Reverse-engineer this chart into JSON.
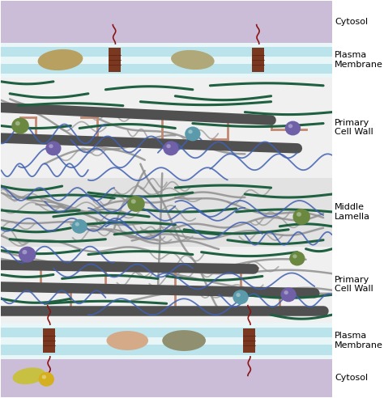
{
  "figsize": [
    4.74,
    4.92
  ],
  "dpi": 100,
  "bg_color": "#ffffff",
  "cytosol_color": "#cbbcd8",
  "membrane_bg_color": "#e8f6f8",
  "membrane_stripe_color": "#a8dce8",
  "wall_color": "#f0f0f0",
  "middle_lamella_color": "#e2e2e2",
  "cellulose_color": "#1e6040",
  "hemicellulose_color": "#4060b0",
  "pectin_color": "#909090",
  "microfibril_color": "#505050",
  "ladder_color": "#c08870",
  "rosette_color": "#7a3820",
  "spiral_color": "#8b1515",
  "labels": {
    "cytosol_top": "Cytosol",
    "membrane_top": "Plasma\nMembrane",
    "cell_wall_top": "Primary\nCell Wall",
    "middle_lamella": "Middle\nLamella",
    "cell_wall_bottom": "Primary\nCell Wall",
    "membrane_bottom": "Plasma\nMembrane",
    "cytosol_bottom": "Cytosol"
  },
  "label_fontsize": 8.0
}
